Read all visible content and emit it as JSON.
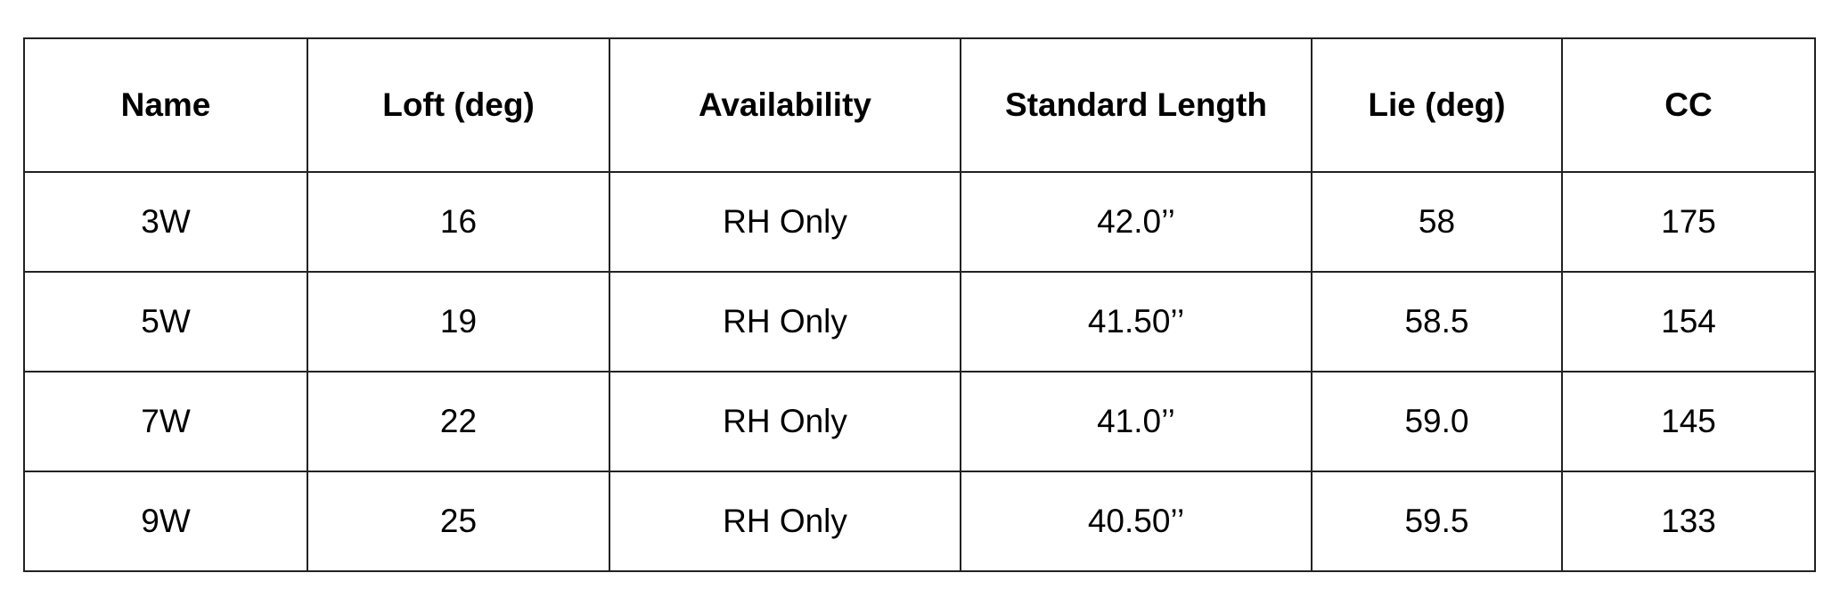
{
  "table": {
    "headers": [
      "Name",
      "Loft (deg)",
      "Availability",
      "Standard Length",
      "Lie (deg)",
      "CC"
    ],
    "rows": [
      [
        "3W",
        "16",
        "RH Only",
        "42.0’’",
        "58",
        "175"
      ],
      [
        "5W",
        "19",
        "RH Only",
        "41.50’’",
        "58.5",
        "154"
      ],
      [
        "7W",
        "22",
        "RH Only",
        "41.0’’",
        "59.0",
        "145"
      ],
      [
        "9W",
        "25",
        "RH Only",
        "40.50’’",
        "59.5",
        "133"
      ]
    ]
  }
}
